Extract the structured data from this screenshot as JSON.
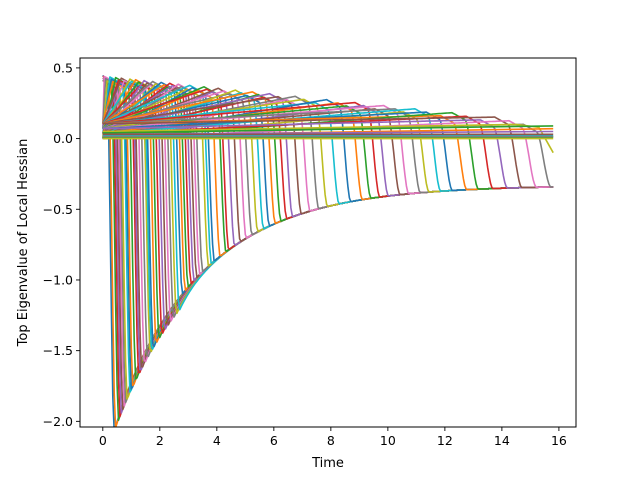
{
  "chart_data": {
    "type": "line",
    "title": "",
    "xlabel": "Time",
    "ylabel": "Top Eigenvalue of Local Hessian",
    "xlim": [
      -0.8,
      16.6
    ],
    "ylim": [
      -2.04,
      0.57
    ],
    "xticks": [
      0,
      2,
      4,
      6,
      8,
      10,
      12,
      14,
      16
    ],
    "yticks": [
      -2.0,
      -1.5,
      -1.0,
      -0.5,
      0.0,
      0.5
    ],
    "xtick_labels": [
      "0",
      "2",
      "4",
      "6",
      "8",
      "10",
      "12",
      "14",
      "16"
    ],
    "ytick_labels": [
      "−2.0",
      "−1.5",
      "−1.0",
      "−0.5",
      "0.0",
      "0.5"
    ],
    "grid": false,
    "legend": "none",
    "palette": [
      "#1f77b4",
      "#ff7f0e",
      "#2ca02c",
      "#d62728",
      "#9467bd",
      "#8c564b",
      "#e377c2",
      "#7f7f7f",
      "#bcbd22",
      "#17becf"
    ],
    "series_model": "piecewise: rises to a positive peak then collapses near the drop time onto a common envelope -0.33 - 1.6*exp(-0.32*(t-0.5)); x sampled 0 to 15.8",
    "t_end": 15.8,
    "drop_times": [
      0.15,
      0.2,
      0.3,
      0.35,
      0.4,
      0.45,
      0.5,
      0.55,
      0.6,
      0.7,
      0.75,
      0.8,
      0.9,
      1.0,
      1.05,
      1.1,
      1.2,
      1.3,
      1.4,
      1.45,
      1.5,
      1.6,
      1.7,
      1.8,
      1.9,
      2.0,
      2.1,
      2.2,
      2.3,
      2.4,
      2.5,
      2.6,
      2.7,
      2.8,
      2.9,
      3.0,
      3.1,
      3.2,
      3.4,
      3.5,
      3.6,
      3.8,
      4.0,
      4.1,
      4.3,
      4.5,
      4.7,
      4.9,
      5.1,
      5.3,
      5.5,
      5.7,
      5.9,
      6.1,
      6.3,
      6.6,
      6.9,
      7.2,
      7.5,
      7.9,
      8.3,
      8.7,
      9.0,
      9.3,
      9.6,
      10.0,
      10.3,
      10.7,
      11.0,
      11.4,
      11.8,
      12.3,
      12.7,
      13.2,
      13.7,
      14.2,
      14.7,
      15.2
    ],
    "flat_series": [
      {
        "color": "#2ca02c",
        "values": [
          0.01,
          0.01
        ]
      },
      {
        "color": "#17becf",
        "values": [
          0.02,
          0.02
        ]
      },
      {
        "color": "#8c564b",
        "values": [
          0.03,
          0.03
        ]
      },
      {
        "color": "#bcbd22",
        "values": [
          0.0,
          0.0
        ]
      },
      {
        "color": "#7f7f7f",
        "values": [
          0.015,
          0.015
        ]
      }
    ],
    "tail_series": [
      {
        "color": "#bcbd22",
        "x": [
          0,
          14.5,
          15.3,
          15.8
        ],
        "y": [
          0.05,
          0.1,
          0.08,
          -0.1
        ]
      },
      {
        "color": "#2ca02c",
        "x": [
          0,
          15.8
        ],
        "y": [
          0.04,
          0.09
        ]
      },
      {
        "color": "#ff7f0e",
        "x": [
          0,
          15.8
        ],
        "y": [
          0.02,
          0.07
        ]
      },
      {
        "color": "#9467bd",
        "x": [
          0,
          15.8
        ],
        "y": [
          0.03,
          0.05
        ]
      }
    ]
  }
}
